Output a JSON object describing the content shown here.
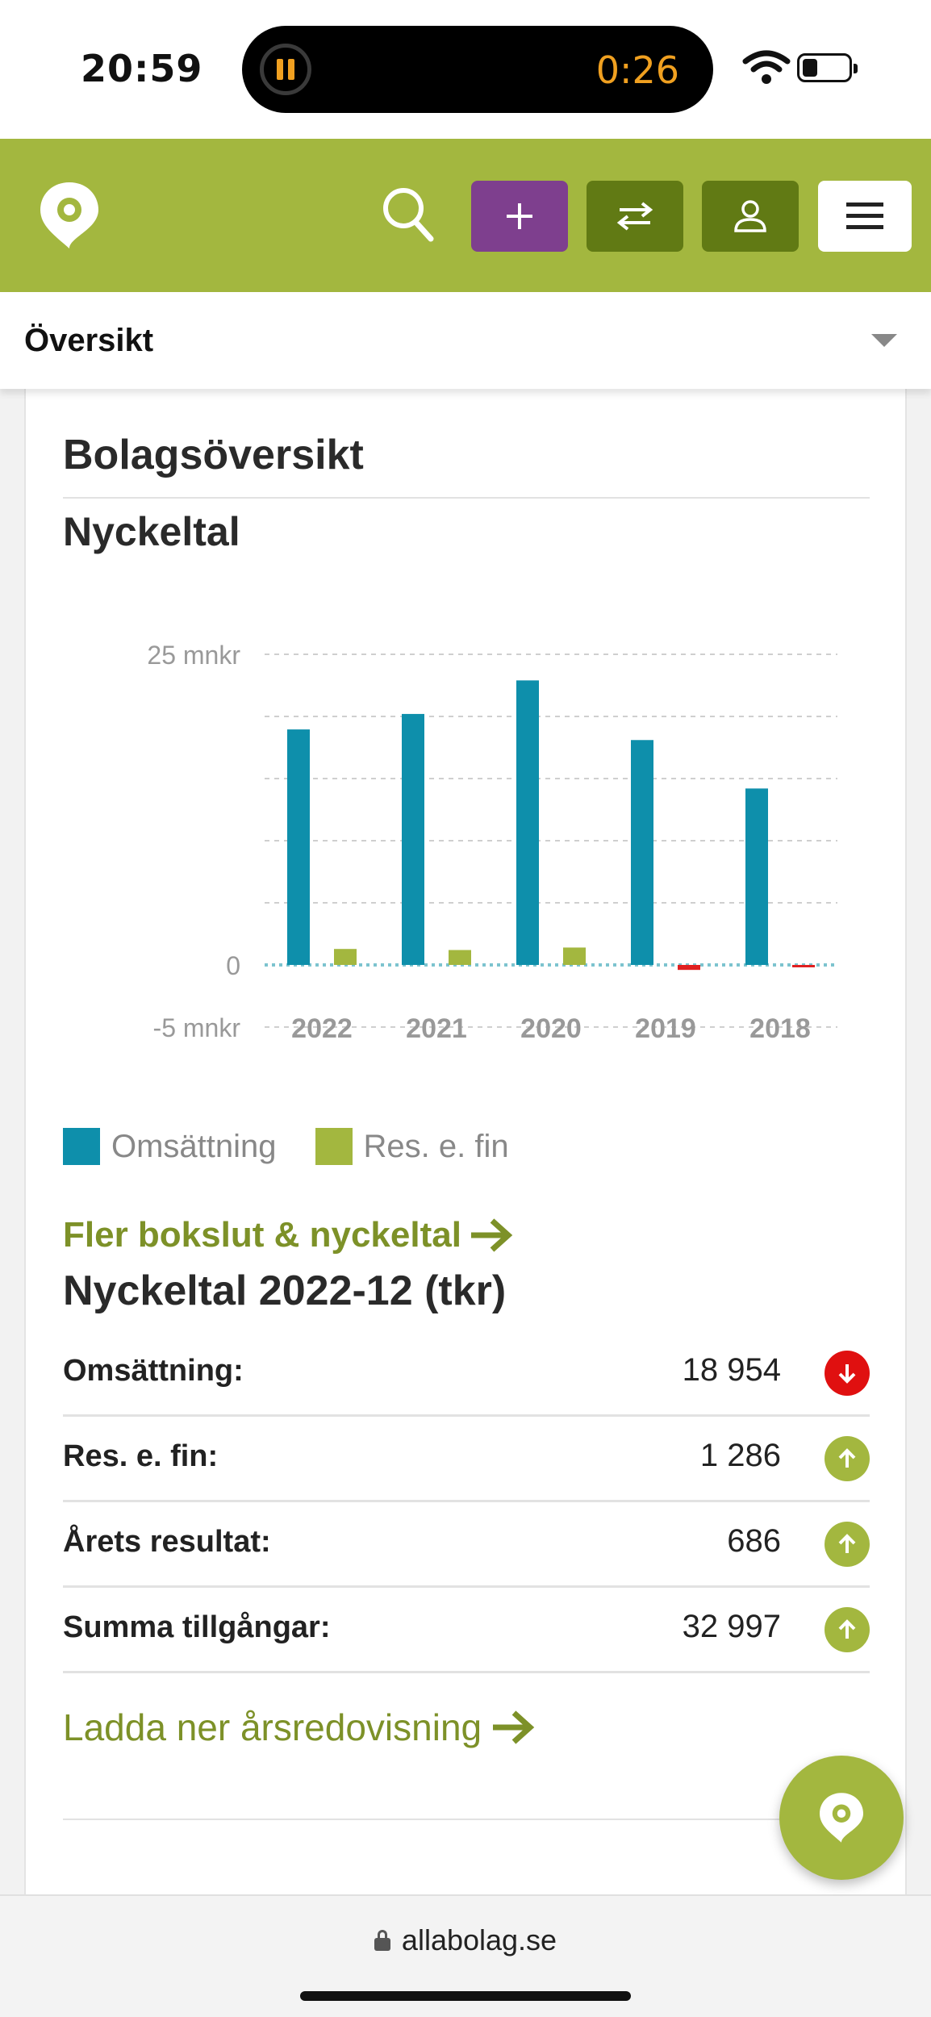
{
  "status_bar": {
    "time": "20:59",
    "island_timer": "0:26",
    "icons": [
      "pause-icon",
      "wifi-icon",
      "battery-icon"
    ]
  },
  "header": {
    "icons": [
      "logo-pin-icon",
      "search-icon",
      "plus-icon",
      "swap-icon",
      "user-icon",
      "menu-icon"
    ],
    "colors": {
      "bar": "#a3b73f",
      "add_button": "#7e3f8e",
      "dark_buttons": "#617a14"
    }
  },
  "dropdown": {
    "selected": "Översikt"
  },
  "card": {
    "title": "Bolagsöversikt",
    "subtitle": "Nyckeltal"
  },
  "chart_data": {
    "type": "bar",
    "categories": [
      "2022",
      "2021",
      "2020",
      "2019",
      "2018"
    ],
    "series": [
      {
        "name": "Omsättning",
        "values": [
          18.954,
          20.2,
          22.9,
          18.1,
          14.2
        ],
        "color": "#0e8fab"
      },
      {
        "name": "Res. e. fin",
        "values": [
          1.286,
          1.2,
          1.4,
          -0.4,
          -0.1
        ],
        "color": "#a3b73f",
        "negative_color": "#e02020"
      }
    ],
    "y_tick_labels": [
      "25 mnkr",
      "0",
      "-5 mnkr"
    ],
    "ylim": [
      -5,
      25
    ],
    "grid": true,
    "legend": "bottom-left"
  },
  "legend": {
    "items": [
      {
        "label": "Omsättning",
        "color": "#0e8fab"
      },
      {
        "label": "Res. e. fin",
        "color": "#a3b73f"
      }
    ]
  },
  "links": {
    "more": "Fler bokslut & nyckeltal",
    "download": "Ladda ner årsredovisning"
  },
  "keyfigures": {
    "title": "Nyckeltal 2022-12 (tkr)",
    "rows": [
      {
        "label": "Omsättning:",
        "value": "18 954",
        "trend": "down"
      },
      {
        "label": "Res. e. fin:",
        "value": "1 286",
        "trend": "up"
      },
      {
        "label": "Årets resultat:",
        "value": "686",
        "trend": "up"
      },
      {
        "label": "Summa tillgångar:",
        "value": "32 997",
        "trend": "up"
      }
    ],
    "colors": {
      "up": "#a3b73f",
      "down": "#e01010"
    }
  },
  "urlbar": {
    "domain": "allabolag.se"
  }
}
